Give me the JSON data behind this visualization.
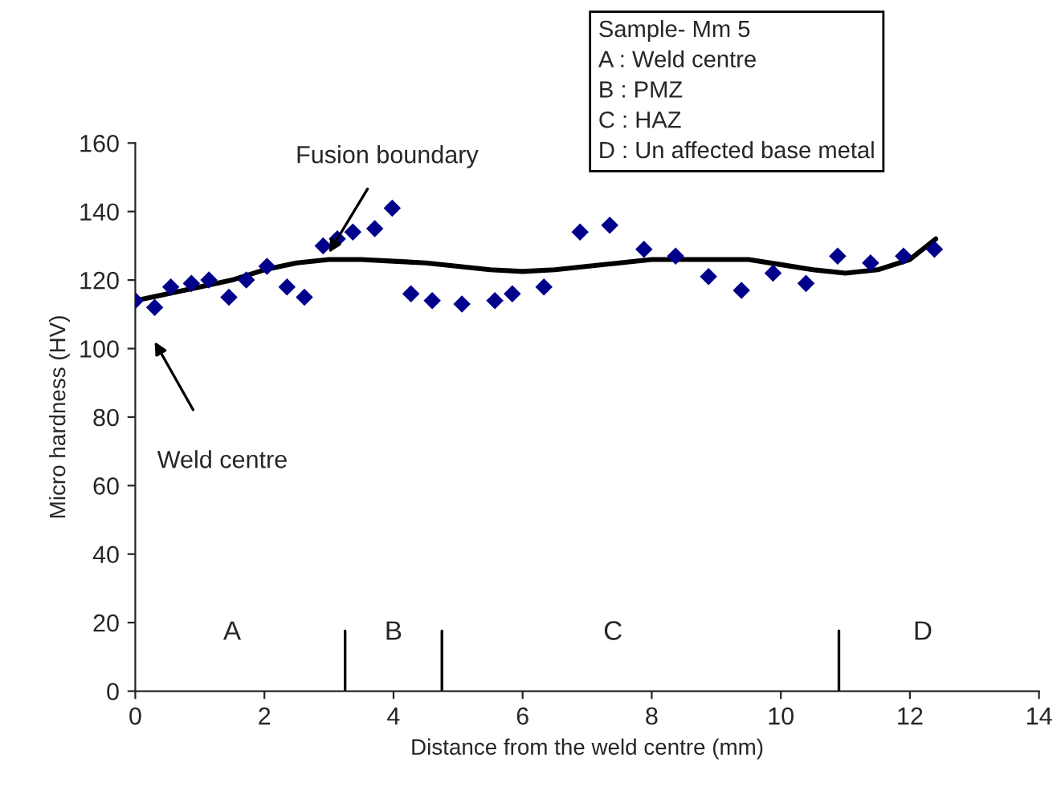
{
  "chart_data": {
    "type": "scatter",
    "xlabel": "Distance from the weld centre (mm)",
    "ylabel": "Micro hardness (HV)",
    "xlim": [
      0,
      14
    ],
    "xticks": [
      0,
      2,
      4,
      6,
      8,
      10,
      12,
      14
    ],
    "ylim": [
      0,
      160
    ],
    "yticks": [
      0,
      20,
      40,
      60,
      80,
      100,
      120,
      140,
      160
    ],
    "grid": false,
    "series": [
      {
        "marker": "diamond",
        "color": "#00008b",
        "x": [
          0,
          0.3,
          0.55,
          0.87,
          1.14,
          1.45,
          1.72,
          2.04,
          2.35,
          2.62,
          2.91,
          3.13,
          3.37,
          3.71,
          3.98,
          4.27,
          4.6,
          5.06,
          5.57,
          5.84,
          6.33,
          6.89,
          7.35,
          7.88,
          8.37,
          8.88,
          9.39,
          9.88,
          10.39,
          10.88,
          11.39,
          11.9,
          12.38
        ],
        "values": [
          114,
          112,
          118,
          119,
          120,
          115,
          120,
          124,
          118,
          115,
          130,
          132,
          134,
          135,
          141,
          116,
          114,
          113,
          114,
          116,
          118,
          134,
          136,
          129,
          127,
          121,
          117,
          122,
          119,
          127,
          125,
          127,
          129
        ]
      },
      {
        "type": "line",
        "color": "#000000",
        "line_style": "solid",
        "x": [
          0,
          0.5,
          1,
          1.5,
          2,
          2.5,
          3,
          3.5,
          4,
          4.5,
          5,
          5.5,
          6,
          6.5,
          7,
          7.5,
          8,
          8.5,
          9,
          9.5,
          10,
          10.5,
          11,
          11.5,
          12,
          12.4
        ],
        "values": [
          114,
          116,
          118,
          120,
          123,
          125,
          126,
          126,
          125.5,
          125,
          124,
          123,
          122.5,
          123,
          124,
          125,
          126,
          126,
          126,
          126,
          124.5,
          123,
          122,
          123,
          126,
          132
        ]
      }
    ],
    "ref_lines": [
      {
        "axis": "x",
        "value": 3.25
      },
      {
        "axis": "x",
        "value": 4.75
      },
      {
        "axis": "x",
        "value": 10.9
      }
    ],
    "annotations": [
      {
        "text": "Fusion boundary",
        "x": 3.0,
        "y": 128
      },
      "Weld centre",
      "A",
      "B",
      "C",
      "D",
      "Sample- Mm 5\nA : Weld centre\nB : PMZ\nC : HAZ\nD : Un affected base metal"
    ]
  }
}
